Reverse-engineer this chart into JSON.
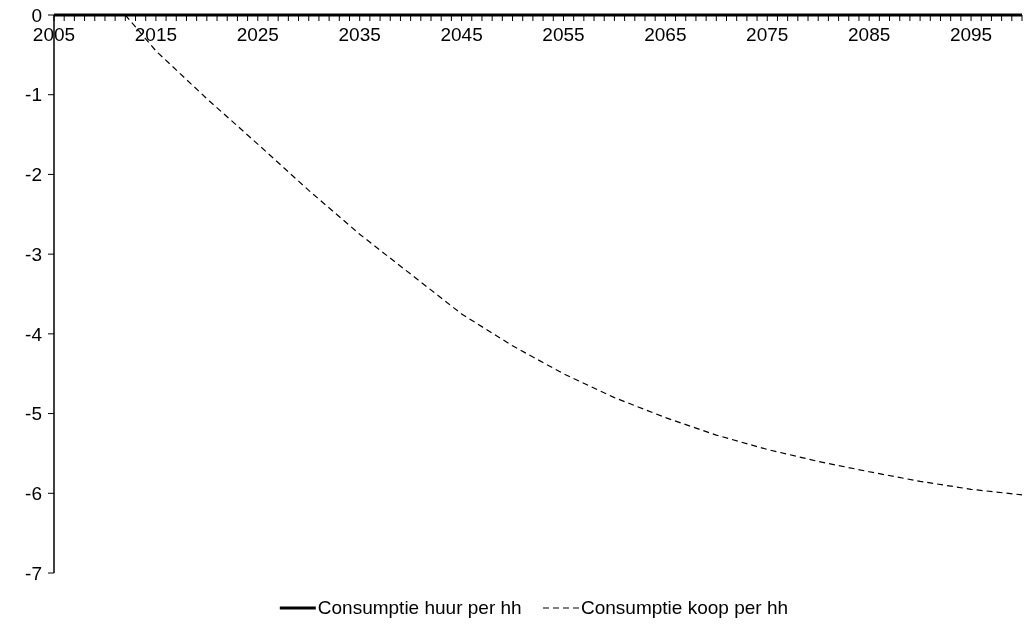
{
  "chart_data": {
    "type": "line",
    "xlim": [
      2005,
      2100
    ],
    "xticks": [
      2005,
      {
        "value": 2006,
        "label": null
      },
      {
        "value": 2007,
        "label": null
      },
      {
        "value": 2008,
        "label": null
      },
      {
        "value": 2009,
        "label": null
      },
      {
        "value": 2010,
        "label": null
      },
      {
        "value": 2011,
        "label": null
      },
      {
        "value": 2012,
        "label": null
      },
      {
        "value": 2013,
        "label": null
      },
      {
        "value": 2014,
        "label": null
      },
      2015,
      {
        "value": 2016,
        "label": null
      },
      {
        "value": 2017,
        "label": null
      },
      {
        "value": 2018,
        "label": null
      },
      {
        "value": 2019,
        "label": null
      },
      {
        "value": 2020,
        "label": null
      },
      {
        "value": 2021,
        "label": null
      },
      {
        "value": 2022,
        "label": null
      },
      {
        "value": 2023,
        "label": null
      },
      {
        "value": 2024,
        "label": null
      },
      2025,
      {
        "value": 2026,
        "label": null
      },
      {
        "value": 2027,
        "label": null
      },
      {
        "value": 2028,
        "label": null
      },
      {
        "value": 2029,
        "label": null
      },
      {
        "value": 2030,
        "label": null
      },
      {
        "value": 2031,
        "label": null
      },
      {
        "value": 2032,
        "label": null
      },
      {
        "value": 2033,
        "label": null
      },
      {
        "value": 2034,
        "label": null
      },
      2035,
      {
        "value": 2036,
        "label": null
      },
      {
        "value": 2037,
        "label": null
      },
      {
        "value": 2038,
        "label": null
      },
      {
        "value": 2039,
        "label": null
      },
      {
        "value": 2040,
        "label": null
      },
      {
        "value": 2041,
        "label": null
      },
      {
        "value": 2042,
        "label": null
      },
      {
        "value": 2043,
        "label": null
      },
      {
        "value": 2044,
        "label": null
      },
      2045,
      {
        "value": 2046,
        "label": null
      },
      {
        "value": 2047,
        "label": null
      },
      {
        "value": 2048,
        "label": null
      },
      {
        "value": 2049,
        "label": null
      },
      {
        "value": 2050,
        "label": null
      },
      {
        "value": 2051,
        "label": null
      },
      {
        "value": 2052,
        "label": null
      },
      {
        "value": 2053,
        "label": null
      },
      {
        "value": 2054,
        "label": null
      },
      2055,
      {
        "value": 2056,
        "label": null
      },
      {
        "value": 2057,
        "label": null
      },
      {
        "value": 2058,
        "label": null
      },
      {
        "value": 2059,
        "label": null
      },
      {
        "value": 2060,
        "label": null
      },
      {
        "value": 2061,
        "label": null
      },
      {
        "value": 2062,
        "label": null
      },
      {
        "value": 2063,
        "label": null
      },
      {
        "value": 2064,
        "label": null
      },
      2065,
      {
        "value": 2066,
        "label": null
      },
      {
        "value": 2067,
        "label": null
      },
      {
        "value": 2068,
        "label": null
      },
      {
        "value": 2069,
        "label": null
      },
      {
        "value": 2070,
        "label": null
      },
      {
        "value": 2071,
        "label": null
      },
      {
        "value": 2072,
        "label": null
      },
      {
        "value": 2073,
        "label": null
      },
      {
        "value": 2074,
        "label": null
      },
      2075,
      {
        "value": 2076,
        "label": null
      },
      {
        "value": 2077,
        "label": null
      },
      {
        "value": 2078,
        "label": null
      },
      {
        "value": 2079,
        "label": null
      },
      {
        "value": 2080,
        "label": null
      },
      {
        "value": 2081,
        "label": null
      },
      {
        "value": 2082,
        "label": null
      },
      {
        "value": 2083,
        "label": null
      },
      {
        "value": 2084,
        "label": null
      },
      2085,
      {
        "value": 2086,
        "label": null
      },
      {
        "value": 2087,
        "label": null
      },
      {
        "value": 2088,
        "label": null
      },
      {
        "value": 2089,
        "label": null
      },
      {
        "value": 2090,
        "label": null
      },
      {
        "value": 2091,
        "label": null
      },
      {
        "value": 2092,
        "label": null
      },
      {
        "value": 2093,
        "label": null
      },
      {
        "value": 2094,
        "label": null
      },
      2095,
      {
        "value": 2096,
        "label": null
      },
      {
        "value": 2097,
        "label": null
      },
      {
        "value": 2098,
        "label": null
      },
      {
        "value": 2099,
        "label": null
      },
      {
        "value": 2100,
        "label": null
      }
    ],
    "ylim": [
      -7,
      0
    ],
    "yticks": [
      0,
      -1,
      -2,
      -3,
      -4,
      -5,
      -6,
      -7
    ],
    "grid": false,
    "legend": "bottom",
    "marker": "none",
    "series": [
      {
        "name": "Consumptie huur per hh",
        "color": "#000000",
        "line_style": "solid",
        "x": [
          2005,
          2100
        ],
        "values": [
          0,
          0
        ]
      },
      {
        "name": "Consumptie koop per hh",
        "color": "#000000",
        "line_style": "dashed",
        "x": [
          2012,
          2015,
          2020,
          2025,
          2030,
          2035,
          2040,
          2045,
          2050,
          2055,
          2060,
          2065,
          2070,
          2075,
          2080,
          2085,
          2090,
          2095,
          2100
        ],
        "values": [
          0,
          -0.45,
          -1.05,
          -1.62,
          -2.2,
          -2.75,
          -3.25,
          -3.75,
          -4.15,
          -4.5,
          -4.8,
          -5.05,
          -5.27,
          -5.45,
          -5.6,
          -5.73,
          -5.85,
          -5.95,
          -6.02
        ]
      }
    ]
  }
}
